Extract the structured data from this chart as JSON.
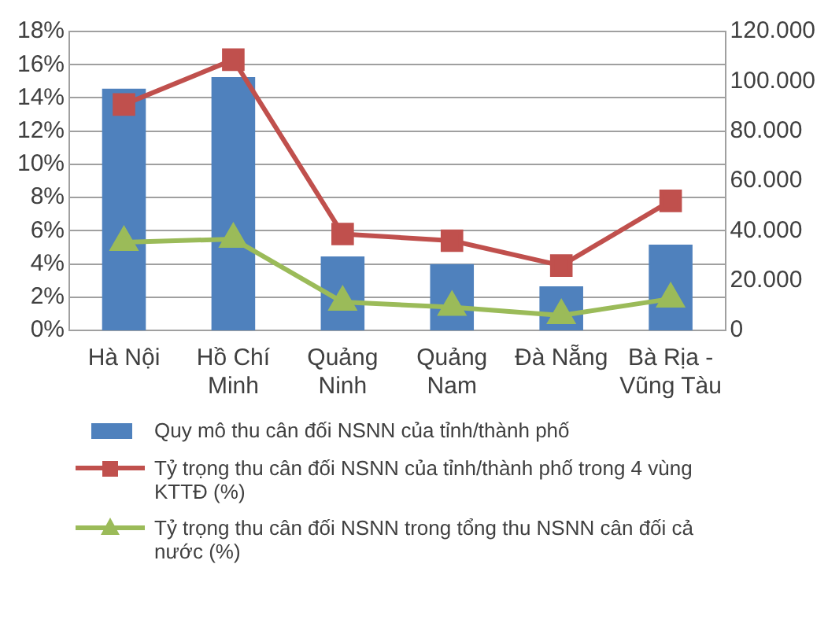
{
  "chart_data": {
    "type": "bar",
    "categories": [
      "Hà Nội",
      "Hồ Chí Minh",
      "Quảng Ninh",
      "Quảng Nam",
      "Đà Nẵng",
      "Bà Rịa - Vũng Tàu"
    ],
    "series": [
      {
        "name": "Quy mô thu cân đối NSNN của tỉnh/thành phố",
        "axis": "y2",
        "color": "#4f81bd",
        "values": [
          97000,
          101700,
          29700,
          26600,
          17700,
          34400
        ]
      },
      {
        "name": "Tỷ trọng thu cân đối NSNN của tỉnh/thành phố trong 4 vùng KTTĐ (%)",
        "type": "line",
        "axis": "y",
        "color": "#c0504d",
        "marker": "square",
        "values": [
          13.6,
          16.3,
          5.8,
          5.4,
          3.9,
          7.8
        ]
      },
      {
        "name": "Tỷ trọng thu cân đối NSNN trong tổng thu NSNN cân đối cả nước (%)",
        "type": "line",
        "axis": "y",
        "color": "#9bbb59",
        "marker": "triangle",
        "values": [
          5.3,
          5.5,
          1.7,
          1.4,
          0.9,
          1.9
        ]
      }
    ],
    "ylim": [
      0,
      18
    ],
    "yticks": [
      {
        "value": 0,
        "label": "0%"
      },
      {
        "value": 2,
        "label": "2%"
      },
      {
        "value": 4,
        "label": "4%"
      },
      {
        "value": 6,
        "label": "6%"
      },
      {
        "value": 8,
        "label": "8%"
      },
      {
        "value": 10,
        "label": "10%"
      },
      {
        "value": 12,
        "label": "12%"
      },
      {
        "value": 14,
        "label": "14%"
      },
      {
        "value": 16,
        "label": "16%"
      },
      {
        "value": 18,
        "label": "18%"
      }
    ],
    "y2lim": [
      0,
      120000
    ],
    "y2ticks": [
      0,
      {
        "value": 20000,
        "label": "20.000"
      },
      {
        "value": 40000,
        "label": "40.000"
      },
      {
        "value": 60000,
        "label": "60.000"
      },
      {
        "value": 80000,
        "label": "80.000"
      },
      {
        "value": 100000,
        "label": "100.000"
      },
      {
        "value": 120000,
        "label": "120.000"
      }
    ],
    "grid": "y",
    "legend": "bottom"
  }
}
